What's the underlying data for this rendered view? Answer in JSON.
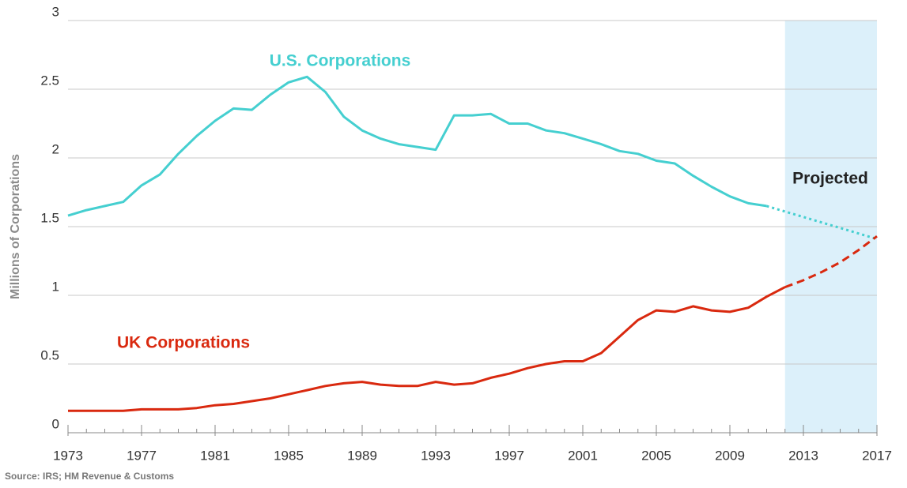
{
  "chart_data": {
    "type": "line",
    "y_label": "Millions of Corporations",
    "source": "Source: IRS; HM Revenue & Customs",
    "projection_label": "Projected",
    "projection_start": 2012,
    "projection_color": "#dcf0fa",
    "x": [
      1973,
      1974,
      1975,
      1976,
      1977,
      1978,
      1979,
      1980,
      1981,
      1982,
      1983,
      1984,
      1985,
      1986,
      1987,
      1988,
      1989,
      1990,
      1991,
      1992,
      1993,
      1994,
      1995,
      1996,
      1997,
      1998,
      1999,
      2000,
      2001,
      2002,
      2003,
      2004,
      2005,
      2006,
      2007,
      2008,
      2009,
      2010,
      2011,
      2012,
      2013,
      2014,
      2015,
      2016,
      2017
    ],
    "xlim": [
      1973,
      2017
    ],
    "xticks": [
      1973,
      1977,
      1981,
      1985,
      1989,
      1993,
      1997,
      2001,
      2005,
      2009,
      2013,
      2017
    ],
    "ylim": [
      0,
      3
    ],
    "yticks": [
      0,
      0.5,
      1,
      1.5,
      2,
      2.5,
      3
    ],
    "grid": true,
    "series": [
      {
        "name": "U.S. Corporations",
        "color": "#45cfd0",
        "projected_style": "dotted",
        "values": [
          1.58,
          1.62,
          1.65,
          1.68,
          1.8,
          1.88,
          2.03,
          2.16,
          2.27,
          2.36,
          2.35,
          2.46,
          2.55,
          2.59,
          2.48,
          2.3,
          2.2,
          2.14,
          2.1,
          2.08,
          2.06,
          2.31,
          2.31,
          2.32,
          2.25,
          2.25,
          2.2,
          2.18,
          2.14,
          2.1,
          2.05,
          2.03,
          1.98,
          1.96,
          1.87,
          1.79,
          1.72,
          1.67,
          1.65,
          null,
          null,
          null,
          null,
          null,
          null
        ],
        "projected": [
          null,
          null,
          null,
          null,
          null,
          null,
          null,
          null,
          null,
          null,
          null,
          null,
          null,
          null,
          null,
          null,
          null,
          null,
          null,
          null,
          null,
          null,
          null,
          null,
          null,
          null,
          null,
          null,
          null,
          null,
          null,
          null,
          null,
          null,
          null,
          null,
          null,
          null,
          null,
          1.61,
          1.57,
          1.53,
          1.49,
          1.45,
          1.41
        ]
      },
      {
        "name": "UK Corporations",
        "color": "#d9290f",
        "projected_style": "dashed",
        "values": [
          0.16,
          0.16,
          0.16,
          0.16,
          0.17,
          0.17,
          0.17,
          0.18,
          0.2,
          0.21,
          0.23,
          0.25,
          0.28,
          0.31,
          0.34,
          0.36,
          0.37,
          0.35,
          0.34,
          0.34,
          0.37,
          0.35,
          0.36,
          0.4,
          0.43,
          0.47,
          0.5,
          0.52,
          0.52,
          0.58,
          0.7,
          0.82,
          0.89,
          0.88,
          0.92,
          0.89,
          0.88,
          0.91,
          0.99,
          1.06,
          null,
          null,
          null,
          null,
          null
        ],
        "projected": [
          null,
          null,
          null,
          null,
          null,
          null,
          null,
          null,
          null,
          null,
          null,
          null,
          null,
          null,
          null,
          null,
          null,
          null,
          null,
          null,
          null,
          null,
          null,
          null,
          null,
          null,
          null,
          null,
          null,
          null,
          null,
          null,
          null,
          null,
          null,
          null,
          null,
          null,
          null,
          null,
          1.11,
          1.17,
          1.24,
          1.33,
          1.43
        ]
      }
    ]
  }
}
